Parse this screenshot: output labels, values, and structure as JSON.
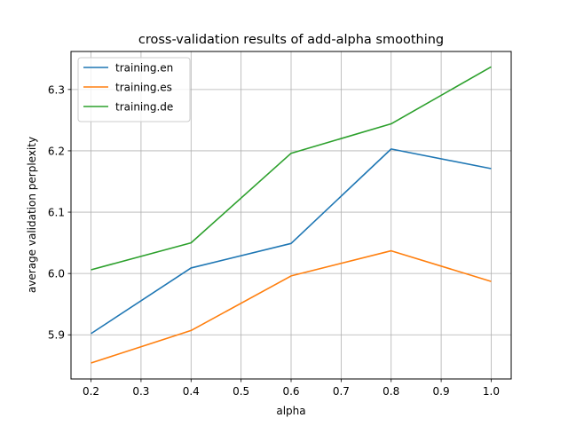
{
  "chart_data": {
    "type": "line",
    "title": "cross-validation results of add-alpha smoothing",
    "xlabel": "alpha",
    "ylabel": "average validation perplexity",
    "x": [
      0.2,
      0.4,
      0.6,
      0.8,
      1.0
    ],
    "xticks": [
      "0.2",
      "0.3",
      "0.4",
      "0.5",
      "0.6",
      "0.7",
      "0.8",
      "0.9",
      "1.0"
    ],
    "yticks": [
      "5.9",
      "6.0",
      "6.1",
      "6.2",
      "6.3"
    ],
    "xlim": [
      0.16,
      1.04
    ],
    "ylim": [
      5.828,
      6.362
    ],
    "grid": true,
    "legend_position": "top-left",
    "series": [
      {
        "name": "training.en",
        "color": "#1f77b4",
        "values": [
          5.902,
          6.009,
          6.049,
          6.203,
          6.171
        ]
      },
      {
        "name": "training.es",
        "color": "#ff7f0e",
        "values": [
          5.854,
          5.907,
          5.996,
          6.037,
          5.987
        ]
      },
      {
        "name": "training.de",
        "color": "#2ca02c",
        "values": [
          6.006,
          6.05,
          6.196,
          6.244,
          6.337
        ]
      }
    ]
  }
}
